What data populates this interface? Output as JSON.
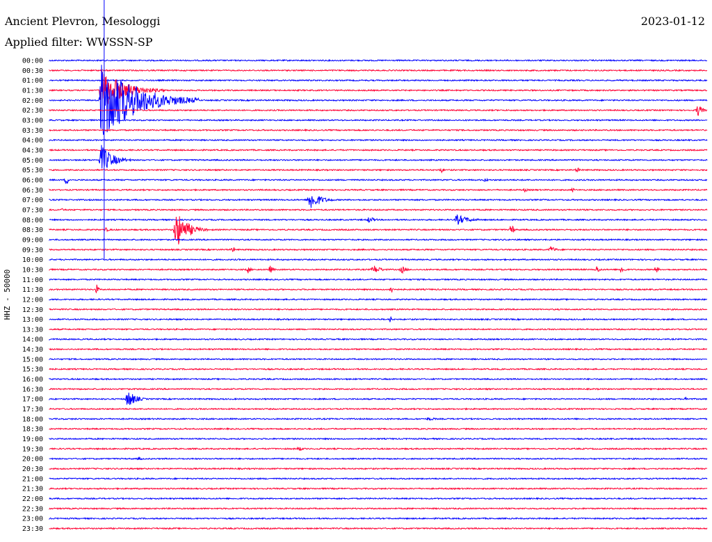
{
  "header": {
    "station": "Ancient Plevron, Mesologgi",
    "date": "2023-01-12",
    "filter": "Applied filter: WWSSN-SP"
  },
  "chart_data": {
    "type": "line",
    "subtype": "helicorder",
    "ylabel": "HHZ - 50000",
    "row_labels": [
      "00:00",
      "00:30",
      "01:00",
      "01:30",
      "02:00",
      "02:30",
      "03:00",
      "03:30",
      "04:00",
      "04:30",
      "05:00",
      "05:30",
      "06:00",
      "06:30",
      "07:00",
      "07:30",
      "08:00",
      "08:30",
      "09:00",
      "09:30",
      "10:00",
      "10:30",
      "11:00",
      "11:30",
      "12:00",
      "12:30",
      "13:00",
      "13:30",
      "14:00",
      "14:30",
      "15:00",
      "15:30",
      "16:00",
      "16:30",
      "17:00",
      "17:30",
      "18:00",
      "18:30",
      "19:00",
      "19:30",
      "20:00",
      "20:30",
      "21:00",
      "21:30",
      "22:00",
      "22:30",
      "23:00",
      "23:30"
    ],
    "row_minutes": 30,
    "trace_colors": [
      "#0000ff",
      "#ff0033"
    ],
    "events": [
      {
        "row": 4,
        "minute": 2.3,
        "amp": 60,
        "dur": 4.5
      },
      {
        "row": 3,
        "minute": 2.3,
        "amp": 30,
        "dur": 3.0
      },
      {
        "row": 5,
        "minute": 29.5,
        "amp": 9,
        "dur": 0.6
      },
      {
        "row": 10,
        "minute": 2.3,
        "amp": 22,
        "dur": 1.5
      },
      {
        "row": 11,
        "minute": 17.8,
        "amp": 4,
        "dur": 0.4
      },
      {
        "row": 11,
        "minute": 24.0,
        "amp": 4,
        "dur": 0.4
      },
      {
        "row": 12,
        "minute": 0.7,
        "amp": 8,
        "dur": 0.3
      },
      {
        "row": 12,
        "minute": 19.8,
        "amp": 3,
        "dur": 0.5
      },
      {
        "row": 13,
        "minute": 21.6,
        "amp": 3,
        "dur": 0.5
      },
      {
        "row": 13,
        "minute": 23.8,
        "amp": 3,
        "dur": 0.3
      },
      {
        "row": 14,
        "minute": 11.8,
        "amp": 16,
        "dur": 1.3
      },
      {
        "row": 15,
        "minute": 0.5,
        "amp": 2,
        "dur": 0.5
      },
      {
        "row": 16,
        "minute": 14.5,
        "amp": 5,
        "dur": 0.8
      },
      {
        "row": 16,
        "minute": 18.5,
        "amp": 8,
        "dur": 1.6
      },
      {
        "row": 17,
        "minute": 5.7,
        "amp": 28,
        "dur": 1.5
      },
      {
        "row": 17,
        "minute": 21.0,
        "amp": 10,
        "dur": 0.3
      },
      {
        "row": 17,
        "minute": 2.5,
        "amp": 3,
        "dur": 0.7
      },
      {
        "row": 19,
        "minute": 8.3,
        "amp": 6,
        "dur": 0.2
      },
      {
        "row": 19,
        "minute": 22.8,
        "amp": 6,
        "dur": 0.6
      },
      {
        "row": 21,
        "minute": 9.0,
        "amp": 6,
        "dur": 0.3
      },
      {
        "row": 21,
        "minute": 10.0,
        "amp": 6,
        "dur": 0.4
      },
      {
        "row": 21,
        "minute": 14.7,
        "amp": 7,
        "dur": 1.0
      },
      {
        "row": 21,
        "minute": 16.0,
        "amp": 6,
        "dur": 0.6
      },
      {
        "row": 21,
        "minute": 24.9,
        "amp": 6,
        "dur": 0.4
      },
      {
        "row": 21,
        "minute": 26.0,
        "amp": 6,
        "dur": 0.5
      },
      {
        "row": 21,
        "minute": 27.6,
        "amp": 6,
        "dur": 0.3
      },
      {
        "row": 23,
        "minute": 2.1,
        "amp": 8,
        "dur": 0.2
      },
      {
        "row": 23,
        "minute": 15.5,
        "amp": 6,
        "dur": 0.5
      },
      {
        "row": 26,
        "minute": 15.5,
        "amp": 8,
        "dur": 0.1
      },
      {
        "row": 34,
        "minute": 3.5,
        "amp": 14,
        "dur": 1.0
      },
      {
        "row": 34,
        "minute": 29.0,
        "amp": 8,
        "dur": 0.1
      },
      {
        "row": 36,
        "minute": 17.2,
        "amp": 3,
        "dur": 1.0
      },
      {
        "row": 39,
        "minute": 11.3,
        "amp": 4,
        "dur": 0.5
      },
      {
        "row": 40,
        "minute": 4.0,
        "amp": 3,
        "dur": 0.5
      }
    ]
  }
}
